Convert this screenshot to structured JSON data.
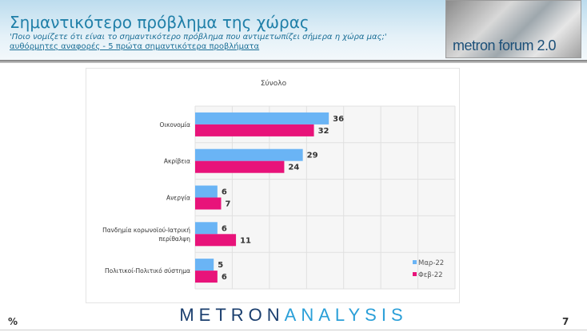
{
  "header": {
    "title": "Σημαντικότερο πρόβλημα της χώρας",
    "question": "'Ποιο νομίζετε ότι  είναι το σημαντικότερο πρόβλημα που αντιμετωπίζει σήμερα η χώρα μας;'",
    "note": "αυθόρμητες αναφορές - 5 πρώτα σημαντικότερα προβλήματα",
    "forum_logo": "metron forum 2.0"
  },
  "footer": {
    "logo_bold": "METRON",
    "logo_light": "ANALYSIS",
    "unit": "%",
    "page": "7"
  },
  "chart_data": {
    "type": "bar",
    "orientation": "horizontal",
    "title": "Σύνολο",
    "categories": [
      "Οικονομία",
      "Ακρίβεια",
      "Ανεργία",
      "Πανδημία κορωνοϊού-Ιατρική περίθαλψη",
      "Πολιτικοί-Πολιτικό σύστημα"
    ],
    "series": [
      {
        "name": "Μαρ-22",
        "color": "#6ab4f5",
        "values": [
          36,
          29,
          6,
          6,
          5
        ]
      },
      {
        "name": "Φεβ-22",
        "color": "#e8137a",
        "values": [
          32,
          24,
          7,
          11,
          6
        ]
      }
    ],
    "xlim": [
      0,
      70
    ],
    "grid": true,
    "legend": "bottom-right"
  }
}
